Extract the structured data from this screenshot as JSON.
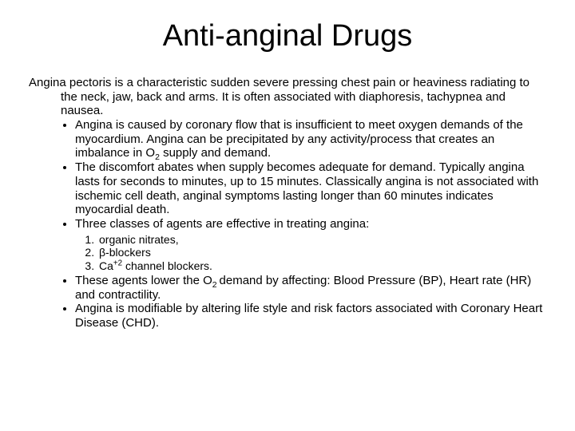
{
  "title": "Anti-anginal Drugs",
  "intro": "Angina pectoris is a characteristic sudden severe pressing chest pain or heaviness radiating to the neck, jaw, back and arms.  It is often associated with diaphoresis, tachypnea and nausea.",
  "bullets_top": [
    "Angina is caused by coronary flow that is insufficient to meet oxygen demands of the myocardium.  Angina can be precipitated by any activity/process that creates an imbalance in O",
    "The discomfort abates when supply becomes adequate for demand.  Typically angina lasts for seconds to minutes, up to 15 minutes.  Classically angina is not associated with ischemic cell death, anginal symptoms lasting longer than 60 minutes indicates myocardial death.",
    "Three classes of agents are effective in treating angina:"
  ],
  "bullet1_suffix": " supply and demand.",
  "sub2": "2",
  "numbered": [
    "organic nitrates,",
    "β-blockers",
    "Ca"
  ],
  "num3_sup": "+2",
  "num3_suffix": " channel blockers.",
  "bullets_bottom": [
    "These agents lower the O",
    "Angina is modifiable by altering life style and risk factors associated with Coronary Heart Disease (CHD)."
  ],
  "bullet_b1_sub": "2 ",
  "bullet_b1_suffix": "demand by affecting: Blood Pressure (BP), Heart rate (HR) and contractility."
}
